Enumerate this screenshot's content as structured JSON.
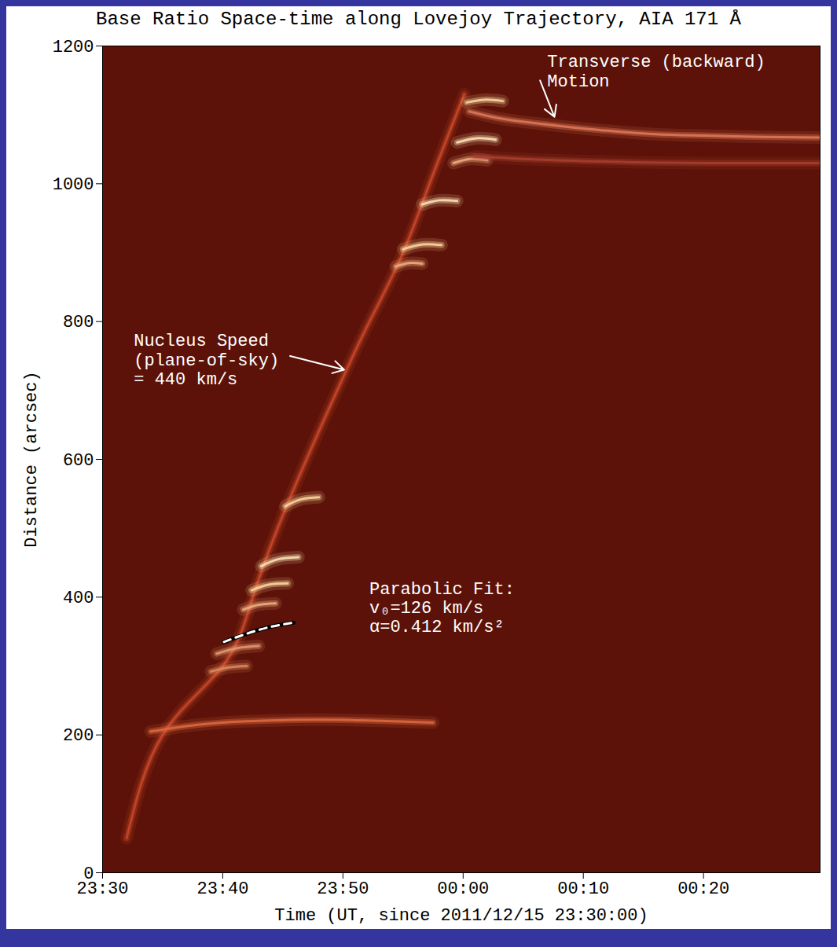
{
  "chart_data": {
    "type": "spacetime",
    "title": "Base Ratio Space-time along Lovejoy Trajectory, AIA 171 Å",
    "x_label": "Time (UT, since 2011/12/15 23:30:00)",
    "y_label": "Distance (arcsec)",
    "xlim": [
      0,
      59.7
    ],
    "xticks": [
      {
        "value": 0,
        "label": "23:30"
      },
      {
        "value": 10,
        "label": "23:40"
      },
      {
        "value": 20,
        "label": "23:50"
      },
      {
        "value": 30,
        "label": "00:00"
      },
      {
        "value": 40,
        "label": "00:10"
      },
      {
        "value": 50,
        "label": "00:20"
      }
    ],
    "ylim": [
      0,
      1200
    ],
    "yticks": [
      0,
      200,
      400,
      600,
      800,
      1000,
      1200
    ],
    "grid": false,
    "color": "#5c1208",
    "series": [
      {
        "color": "#c8482a",
        "x": [
          2,
          5,
          10,
          12.5,
          15.5,
          20.3,
          22.5,
          25,
          27.2,
          30.1
        ],
        "values": [
          50,
          200,
          300,
          400,
          540,
          730,
          810,
          900,
          1000,
          1130
        ]
      },
      {
        "color": "#e06a40",
        "x": [
          4,
          8,
          12,
          16,
          20,
          24,
          27.5
        ],
        "values": [
          205,
          215,
          220,
          222,
          222,
          220,
          218
        ]
      },
      {
        "color": "#ffd9a0",
        "x": [
          15.2,
          16.5,
          18
        ],
        "values": [
          532,
          542,
          545
        ]
      },
      {
        "color": "#ffe6b8",
        "x": [
          13.2,
          14.6,
          16.3
        ],
        "values": [
          445,
          455,
          458
        ]
      },
      {
        "color": "#ffd9a0",
        "x": [
          12.4,
          13.8,
          15.4
        ],
        "values": [
          410,
          418,
          420
        ]
      },
      {
        "color": "#f0b080",
        "x": [
          11.7,
          13,
          14.4
        ],
        "values": [
          382,
          389,
          391
        ]
      },
      {
        "color": "#e89a70",
        "x": [
          9.5,
          11.2,
          13
        ],
        "values": [
          318,
          326,
          329
        ]
      },
      {
        "color": "#e08a60",
        "x": [
          9,
          10.5,
          12
        ],
        "values": [
          292,
          298,
          300
        ]
      },
      {
        "color": "#ffd9a0",
        "x": [
          30.3,
          31.8,
          33.3
        ],
        "values": [
          1118,
          1122,
          1120
        ]
      },
      {
        "color": "#ffe6b8",
        "x": [
          29.5,
          31.1,
          32.7
        ],
        "values": [
          1060,
          1066,
          1064
        ]
      },
      {
        "color": "#f0b080",
        "x": [
          29.2,
          30.6,
          32
        ],
        "values": [
          1030,
          1036,
          1034
        ]
      },
      {
        "color": "#ffe6b8",
        "x": [
          26.6,
          28,
          29.5
        ],
        "values": [
          970,
          976,
          975
        ]
      },
      {
        "color": "#ffd9a0",
        "x": [
          25,
          26.6,
          28.2
        ],
        "values": [
          905,
          912,
          911
        ]
      },
      {
        "color": "#f0b080",
        "x": [
          24.4,
          25.5,
          26.6
        ],
        "values": [
          880,
          885,
          884
        ]
      },
      {
        "color": "#e07a5a",
        "x": [
          30.5,
          33,
          36,
          39,
          42,
          46,
          50,
          55,
          59.7
        ],
        "values": [
          1105,
          1095,
          1088,
          1082,
          1077,
          1072,
          1070,
          1068,
          1067
        ]
      },
      {
        "color": "#a84030",
        "x": [
          31,
          35,
          40,
          45,
          50,
          55,
          59.7
        ],
        "values": [
          1040,
          1036,
          1033,
          1031,
          1030,
          1030,
          1030
        ]
      },
      {
        "color": "#ffffff",
        "line_style": "dashed",
        "x": [
          10.1,
          12,
          14,
          15.9
        ],
        "values": [
          335,
          347,
          357,
          363
        ]
      }
    ],
    "annotations": [
      {
        "text": "Nucleus Speed\n(plane-of-sky)\n= 440 km/s",
        "x": 2.6,
        "y": 784,
        "arrow_from": [
          15.6,
          750
        ],
        "arrow_to": [
          20.1,
          730
        ]
      },
      {
        "text": "Parabolic Fit:\nv₀=126 km/s\nα=0.412 km/s²",
        "x": 22.2,
        "y": 424
      },
      {
        "text": "Transverse (backward)\nMotion",
        "x": 37,
        "y": 1189,
        "arrow_from": [
          36.4,
          1150
        ],
        "arrow_to": [
          37.6,
          1097
        ]
      }
    ]
  }
}
